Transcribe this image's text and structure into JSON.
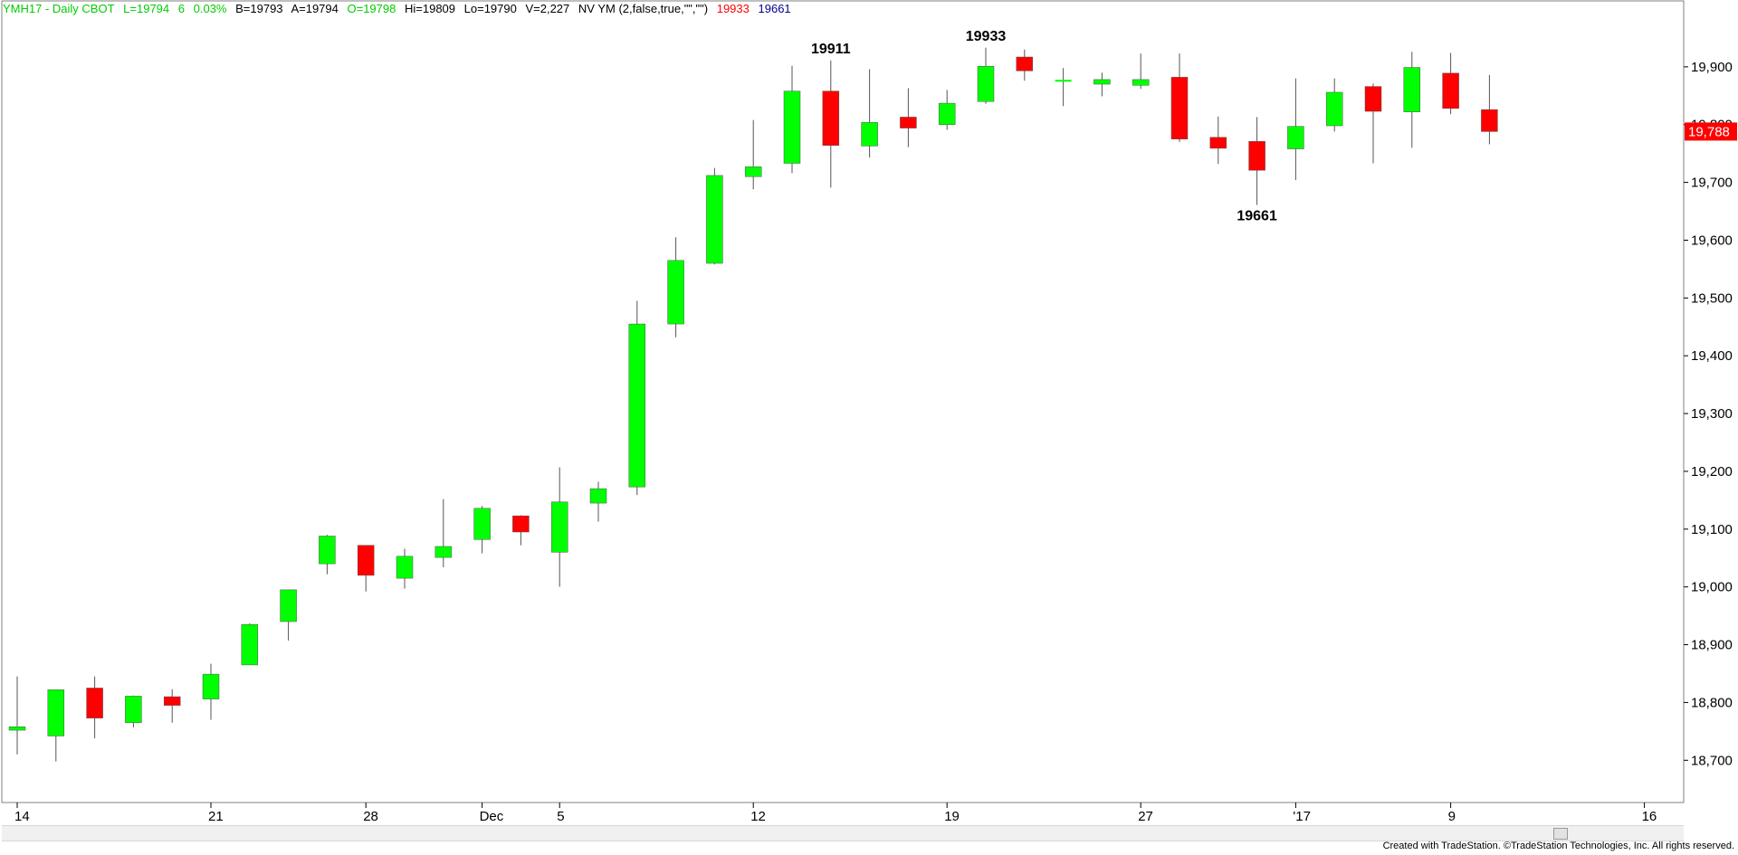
{
  "header": {
    "symbol_info": "YMH17 - Daily  CBOT",
    "last": "L=19794",
    "change": "6",
    "pct_change": "0.03%",
    "bid": "B=19793",
    "ask": "A=19794",
    "open": "O=19798",
    "high": "Hi=19809",
    "low": "Lo=19790",
    "volume": "V=2,227",
    "indicator": "NV YM (2,false,true,\"\",\"\")",
    "ind_high": "19933",
    "ind_low": "19661"
  },
  "footer": {
    "credit": "Created with TradeStation. ©TradeStation Technologies, Inc. All rights reserved."
  },
  "colors": {
    "up": "#00ff00",
    "down": "#ff0000",
    "up_header": "#00cc00",
    "price_box": "#ff0000",
    "ind_low": "#00008b"
  },
  "last_price_label": "19,788",
  "chart_data": {
    "type": "candlestick",
    "yaxis": {
      "min": 18630,
      "max": 20000,
      "ticks": [
        18700,
        18800,
        18900,
        19000,
        19100,
        19200,
        19300,
        19400,
        19500,
        19600,
        19700,
        19800,
        19900
      ],
      "tick_labels": [
        "18,700",
        "18,800",
        "18,900",
        "19,000",
        "19,100",
        "19,200",
        "19,300",
        "19,400",
        "19,500",
        "19,600",
        "19,700",
        "19,800",
        "19,900"
      ]
    },
    "xaxis": {
      "labels": [
        {
          "text": "14",
          "bar": 0
        },
        {
          "text": "21",
          "bar": 5
        },
        {
          "text": "28",
          "bar": 9
        },
        {
          "text": "Dec",
          "bar": 12
        },
        {
          "text": "5",
          "bar": 14
        },
        {
          "text": "12",
          "bar": 19
        },
        {
          "text": "19",
          "bar": 24
        },
        {
          "text": "27",
          "bar": 29
        },
        {
          "text": "'17",
          "bar": 33
        },
        {
          "text": "9",
          "bar": 37
        },
        {
          "text": "16",
          "bar": 42
        }
      ],
      "bar_count_visible": 44
    },
    "annotations": [
      {
        "text": "19911",
        "bar": 21,
        "price": 19911,
        "position": "above"
      },
      {
        "text": "19933",
        "bar": 25,
        "price": 19933,
        "position": "above"
      },
      {
        "text": "19661",
        "bar": 32,
        "price": 19661,
        "position": "below"
      }
    ],
    "candles": [
      {
        "o": 18752,
        "h": 18845,
        "l": 18710,
        "c": 18758
      },
      {
        "o": 18742,
        "h": 18822,
        "l": 18698,
        "c": 18822
      },
      {
        "o": 18825,
        "h": 18845,
        "l": 18738,
        "c": 18773
      },
      {
        "o": 18765,
        "h": 18812,
        "l": 18757,
        "c": 18811
      },
      {
        "o": 18810,
        "h": 18823,
        "l": 18765,
        "c": 18795
      },
      {
        "o": 18806,
        "h": 18867,
        "l": 18770,
        "c": 18849
      },
      {
        "o": 18865,
        "h": 18937,
        "l": 18865,
        "c": 18935
      },
      {
        "o": 18940,
        "h": 18995,
        "l": 18907,
        "c": 18995
      },
      {
        "o": 19040,
        "h": 19090,
        "l": 19022,
        "c": 19088
      },
      {
        "o": 19072,
        "h": 19072,
        "l": 18992,
        "c": 19020
      },
      {
        "o": 19015,
        "h": 19066,
        "l": 18997,
        "c": 19053
      },
      {
        "o": 19051,
        "h": 19152,
        "l": 19034,
        "c": 19070
      },
      {
        "o": 19082,
        "h": 19140,
        "l": 19058,
        "c": 19136
      },
      {
        "o": 19123,
        "h": 19124,
        "l": 19072,
        "c": 19095
      },
      {
        "o": 19060,
        "h": 19207,
        "l": 19000,
        "c": 19147
      },
      {
        "o": 19145,
        "h": 19182,
        "l": 19113,
        "c": 19170
      },
      {
        "o": 19173,
        "h": 19495,
        "l": 19159,
        "c": 19455
      },
      {
        "o": 19455,
        "h": 19605,
        "l": 19432,
        "c": 19565
      },
      {
        "o": 19560,
        "h": 19725,
        "l": 19558,
        "c": 19712
      },
      {
        "o": 19710,
        "h": 19808,
        "l": 19688,
        "c": 19727
      },
      {
        "o": 19733,
        "h": 19902,
        "l": 19716,
        "c": 19858
      },
      {
        "o": 19858,
        "h": 19911,
        "l": 19691,
        "c": 19764
      },
      {
        "o": 19763,
        "h": 19896,
        "l": 19743,
        "c": 19804
      },
      {
        "o": 19813,
        "h": 19863,
        "l": 19761,
        "c": 19794
      },
      {
        "o": 19800,
        "h": 19860,
        "l": 19791,
        "c": 19837
      },
      {
        "o": 19840,
        "h": 19933,
        "l": 19836,
        "c": 19901
      },
      {
        "o": 19917,
        "h": 19930,
        "l": 19876,
        "c": 19893
      },
      {
        "o": 19876,
        "h": 19898,
        "l": 19832,
        "c": 19876
      },
      {
        "o": 19870,
        "h": 19890,
        "l": 19849,
        "c": 19878
      },
      {
        "o": 19868,
        "h": 19923,
        "l": 19862,
        "c": 19878
      },
      {
        "o": 19882,
        "h": 19923,
        "l": 19770,
        "c": 19775
      },
      {
        "o": 19778,
        "h": 19814,
        "l": 19732,
        "c": 19759
      },
      {
        "o": 19771,
        "h": 19813,
        "l": 19661,
        "c": 19721
      },
      {
        "o": 19758,
        "h": 19880,
        "l": 19704,
        "c": 19797
      },
      {
        "o": 19798,
        "h": 19880,
        "l": 19788,
        "c": 19856
      },
      {
        "o": 19866,
        "h": 19871,
        "l": 19733,
        "c": 19823
      },
      {
        "o": 19822,
        "h": 19926,
        "l": 19760,
        "c": 19899
      },
      {
        "o": 19889,
        "h": 19924,
        "l": 19818,
        "c": 19828
      },
      {
        "o": 19826,
        "h": 19886,
        "l": 19766,
        "c": 19788
      }
    ]
  }
}
